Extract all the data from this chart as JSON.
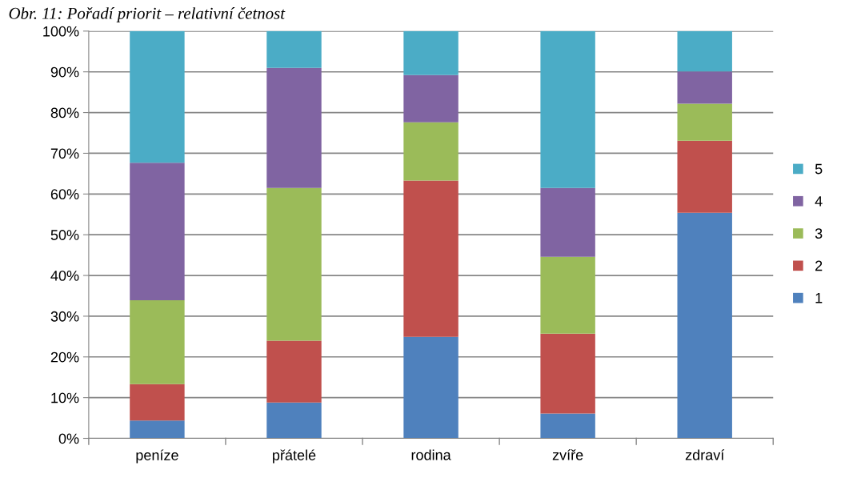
{
  "chart_data": {
    "type": "bar",
    "stacked": true,
    "title": "Obr. 11: Pořadí priorit – relativní četnost",
    "categories": [
      "peníze",
      "přátelé",
      "rodina",
      "zvíře",
      "zdraví"
    ],
    "series": [
      {
        "name": "1",
        "color": "#4f81bd",
        "values": [
          4.4,
          8.8,
          24.9,
          6.1,
          55.4
        ]
      },
      {
        "name": "2",
        "color": "#c0504d",
        "values": [
          8.9,
          15.2,
          38.4,
          19.6,
          17.7
        ]
      },
      {
        "name": "3",
        "color": "#9bbb59",
        "values": [
          20.6,
          37.5,
          14.3,
          18.9,
          9.1
        ]
      },
      {
        "name": "4",
        "color": "#8064a2",
        "values": [
          33.8,
          29.5,
          11.6,
          16.9,
          7.9
        ]
      },
      {
        "name": "5",
        "color": "#4bacc6",
        "values": [
          32.3,
          9.0,
          10.8,
          38.5,
          9.9
        ]
      }
    ],
    "ylim": [
      0,
      100
    ],
    "yticks": [
      {
        "value": 0,
        "label": "0%"
      },
      {
        "value": 10,
        "label": "10%"
      },
      {
        "value": 20,
        "label": "20%"
      },
      {
        "value": 30,
        "label": "30%"
      },
      {
        "value": 40,
        "label": "40%"
      },
      {
        "value": 50,
        "label": "50%"
      },
      {
        "value": 60,
        "label": "60%"
      },
      {
        "value": 70,
        "label": "70%"
      },
      {
        "value": 80,
        "label": "80%"
      },
      {
        "value": 90,
        "label": "90%"
      },
      {
        "value": 100,
        "label": "100%"
      }
    ],
    "grid": "y",
    "legend": "right"
  }
}
